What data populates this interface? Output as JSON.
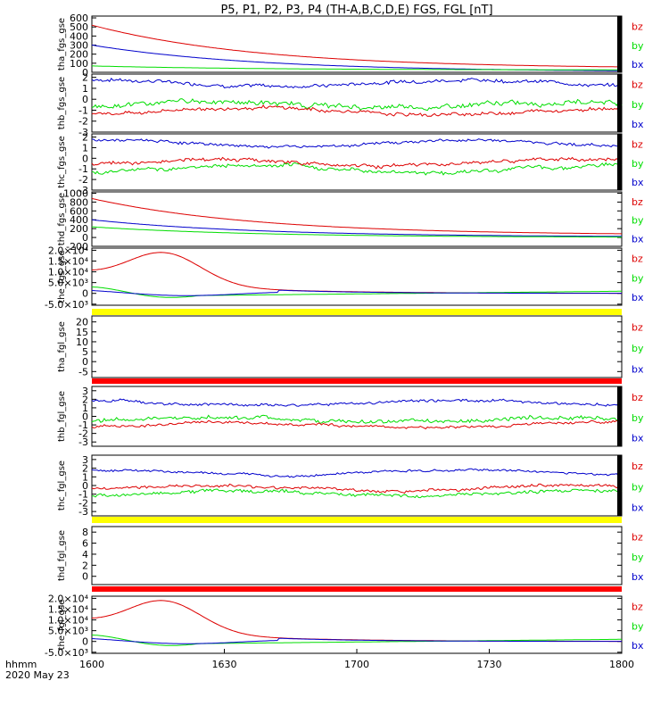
{
  "title": "P5, P1, P2, P3, P4 (TH-A,B,C,D,E) FGS, FGL [nT]",
  "footer": {
    "time_label": "hhmm",
    "date_label": "2020 May 23"
  },
  "colors": {
    "bz": "#dd0000",
    "by": "#00dd00",
    "bx": "#0000cc",
    "yellow": "#ffff00",
    "red_bar": "#ff0000",
    "black": "#000000"
  },
  "chart_data": {
    "type": "line",
    "x_ticks": [
      "1600",
      "1630",
      "1700",
      "1730",
      "1800"
    ],
    "xlim": [
      "16:00",
      "18:00"
    ],
    "legend": [
      "bz",
      "by",
      "bx"
    ],
    "panels": [
      {
        "ylabel": "tha_fgs_gse",
        "yticks": [
          "0",
          "100",
          "200",
          "300",
          "400",
          "500",
          "600"
        ],
        "ylim": [
          0,
          620
        ],
        "empty": false,
        "series": [
          {
            "name": "bz",
            "shape": "decay",
            "start": 520,
            "end": 40,
            "noise": 0
          },
          {
            "name": "bx",
            "shape": "decay",
            "start": 300,
            "end": 5,
            "noise": 0
          },
          {
            "name": "by",
            "shape": "decay",
            "start": 70,
            "end": 25,
            "noise": 0
          }
        ]
      },
      {
        "ylabel": "thb_fgs_gse",
        "yticks": [
          "2",
          "1",
          "0",
          "-1",
          "-2",
          "-3"
        ],
        "ylim": [
          -3,
          2.3
        ],
        "empty": false,
        "series": [
          {
            "name": "bx",
            "shape": "noisy",
            "level": 1.5,
            "noise": 0.25
          },
          {
            "name": "by",
            "shape": "noisy",
            "level": -0.5,
            "noise": 0.35
          },
          {
            "name": "bz",
            "shape": "noisy",
            "level": -1.1,
            "noise": 0.25
          }
        ]
      },
      {
        "ylabel": "thc_fgs_gse",
        "yticks": [
          "2",
          "1",
          "0",
          "-1",
          "-2",
          "-3"
        ],
        "ylim": [
          -3,
          2.3
        ],
        "empty": false,
        "series": [
          {
            "name": "bx",
            "shape": "noisy",
            "level": 1.4,
            "noise": 0.2
          },
          {
            "name": "by",
            "shape": "noisy",
            "level": -1.0,
            "noise": 0.3
          },
          {
            "name": "bz",
            "shape": "noisy",
            "level": -0.4,
            "noise": 0.25
          }
        ]
      },
      {
        "ylabel": "thd_fgs_gse",
        "yticks": [
          "-200",
          "0",
          "200",
          "400",
          "600",
          "800",
          "1000"
        ],
        "ylim": [
          -200,
          1030
        ],
        "empty": false,
        "series": [
          {
            "name": "bz",
            "shape": "decay",
            "start": 880,
            "end": 50,
            "noise": 0
          },
          {
            "name": "bx",
            "shape": "decay",
            "start": 400,
            "end": 10,
            "noise": 0
          },
          {
            "name": "by",
            "shape": "decay",
            "start": 240,
            "end": 0,
            "noise": 0
          }
        ]
      },
      {
        "ylabel": "the_fgs_gse",
        "yticks": [
          "-5.0×10³",
          "0",
          "5.0×10³",
          "1.0×10⁴",
          "1.5×10⁴",
          "2.0×10⁴"
        ],
        "ylim": [
          -5500,
          21000
        ],
        "empty": false,
        "series": [
          {
            "name": "bz",
            "shape": "hump",
            "base": 9000,
            "peak": 19000,
            "noise": 0
          },
          {
            "name": "by",
            "shape": "dip",
            "base": 3000,
            "noise": 0
          },
          {
            "name": "bx",
            "shape": "wave",
            "base": 1500,
            "noise": 0
          }
        ]
      },
      {
        "ylabel": "tha_fgl_gse",
        "yticks": [
          "-5",
          "0",
          "5",
          "10",
          "15",
          "20"
        ],
        "ylim": [
          -8,
          23
        ],
        "empty": true,
        "series": []
      },
      {
        "ylabel": "thb_fgl_gse",
        "yticks": [
          "3",
          "2",
          "1",
          "0",
          "-1",
          "-2",
          "-3"
        ],
        "ylim": [
          -3.5,
          3.5
        ],
        "empty": false,
        "series": [
          {
            "name": "bx",
            "shape": "noisy",
            "level": 1.6,
            "noise": 0.25
          },
          {
            "name": "by",
            "shape": "noisy",
            "level": -0.4,
            "noise": 0.35
          },
          {
            "name": "bz",
            "shape": "noisy",
            "level": -1.0,
            "noise": 0.25
          }
        ]
      },
      {
        "ylabel": "thc_fgl_gse",
        "yticks": [
          "3",
          "2",
          "1",
          "0",
          "-1",
          "-2",
          "-3"
        ],
        "ylim": [
          -3.5,
          3.5
        ],
        "empty": false,
        "series": [
          {
            "name": "bx",
            "shape": "noisy",
            "level": 1.5,
            "noise": 0.2
          },
          {
            "name": "by",
            "shape": "noisy",
            "level": -0.9,
            "noise": 0.3
          },
          {
            "name": "bz",
            "shape": "noisy",
            "level": -0.3,
            "noise": 0.25
          }
        ]
      },
      {
        "ylabel": "thd_fgl_gse",
        "yticks": [
          "0",
          "2",
          "4",
          "6",
          "8"
        ],
        "ylim": [
          -1.5,
          9
        ],
        "empty": true,
        "series": []
      },
      {
        "ylabel": "the_fgl_gse",
        "yticks": [
          "-5.0×10³",
          "0",
          "5.0×10³",
          "1.0×10⁴",
          "1.5×10⁴",
          "2.0×10⁴"
        ],
        "ylim": [
          -5500,
          21000
        ],
        "empty": false,
        "series": [
          {
            "name": "bz",
            "shape": "hump",
            "base": 9000,
            "peak": 19000,
            "noise": 0
          },
          {
            "name": "by",
            "shape": "dip",
            "base": 3000,
            "noise": 0
          },
          {
            "name": "bx",
            "shape": "wave",
            "base": 1500,
            "noise": 0
          }
        ]
      }
    ]
  }
}
